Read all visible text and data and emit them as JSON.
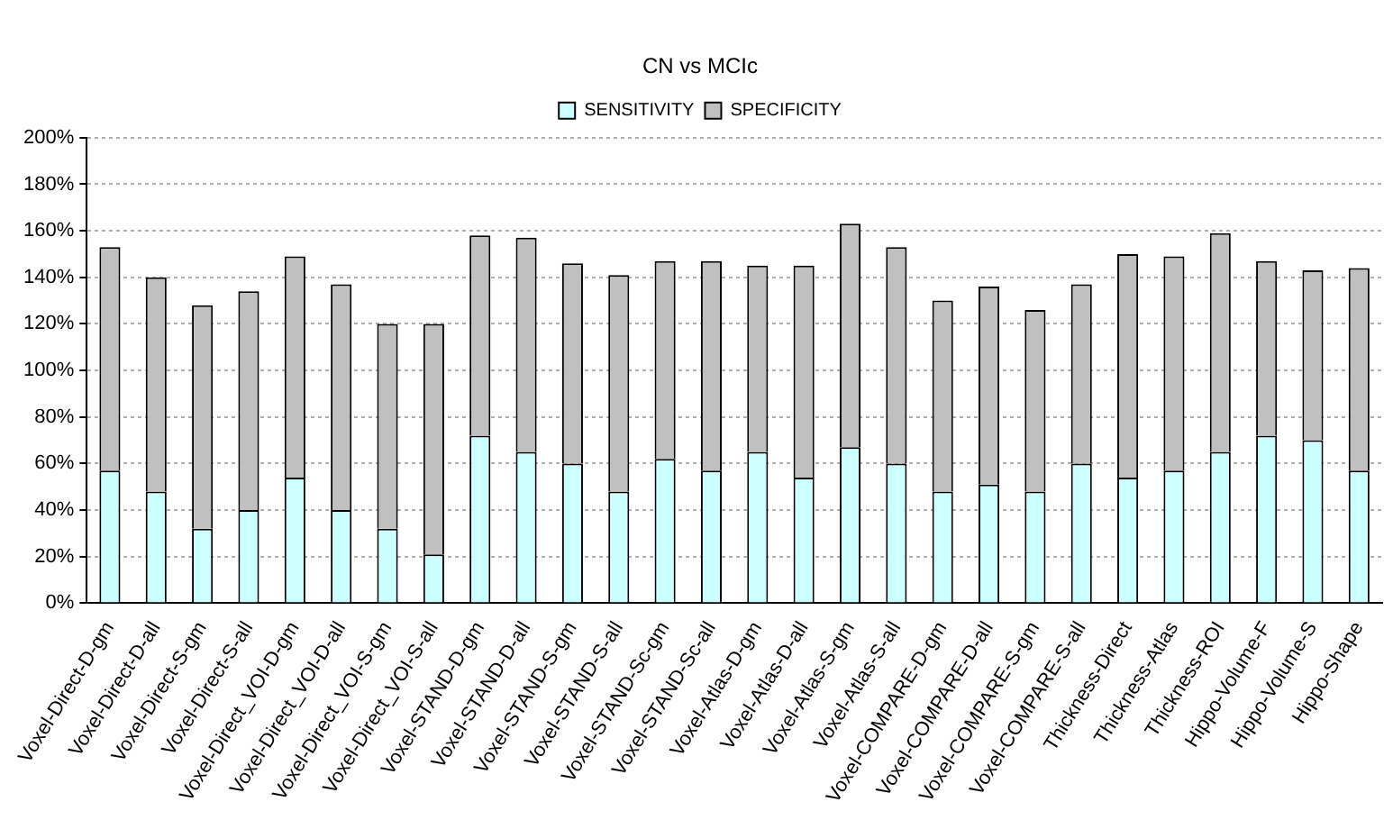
{
  "chart_data": {
    "type": "bar",
    "title": "CN vs MCIc",
    "stacked": true,
    "categories": [
      "Voxel-Direct-D-gm",
      "Voxel-Direct-D-all",
      "Voxel-Direct-S-gm",
      "Voxel-Direct-S-all",
      "Voxel-Direct_VOI-D-gm",
      "Voxel-Direct_VOI-D-all",
      "Voxel-Direct_VOI-S-gm",
      "Voxel-Direct_VOI-S-all",
      "Voxel-STAND-D-gm",
      "Voxel-STAND-D-all",
      "Voxel-STAND-S-gm",
      "Voxel-STAND-S-all",
      "Voxel-STAND-Sc-gm",
      "Voxel-STAND-Sc-all",
      "Voxel-Atlas-D-gm",
      "Voxel-Atlas-D-all",
      "Voxel-Atlas-S-gm",
      "Voxel-Atlas-S-all",
      "Voxel-COMPARE-D-gm",
      "Voxel-COMPARE-D-all",
      "Voxel-COMPARE-S-gm",
      "Voxel-COMPARE-S-all",
      "Thickness-Direct",
      "Thickness-Atlas",
      "Thickness-ROI",
      "Hippo-Volume-F",
      "Hippo-Volume-S",
      "Hippo-Shape"
    ],
    "series": [
      {
        "name": "SENSITIVITY",
        "color": "#ccffff",
        "values": [
          57,
          48,
          32,
          40,
          54,
          40,
          32,
          21,
          72,
          65,
          60,
          48,
          62,
          57,
          65,
          54,
          67,
          60,
          48,
          51,
          48,
          60,
          54,
          57,
          65,
          72,
          70,
          57
        ]
      },
      {
        "name": "SPECIFICITY",
        "color": "#c0c0c0",
        "values": [
          96,
          92,
          96,
          94,
          95,
          97,
          88,
          99,
          86,
          92,
          86,
          93,
          85,
          90,
          80,
          91,
          96,
          93,
          82,
          85,
          78,
          77,
          96,
          92,
          94,
          75,
          73,
          87
        ]
      }
    ],
    "ylim": [
      0,
      200
    ],
    "yticks": [
      {
        "value": 0,
        "label": "0%"
      },
      {
        "value": 20,
        "label": "20%"
      },
      {
        "value": 40,
        "label": "40%"
      },
      {
        "value": 60,
        "label": "60%"
      },
      {
        "value": 80,
        "label": "80%"
      },
      {
        "value": 100,
        "label": "100%"
      },
      {
        "value": 120,
        "label": "120%"
      },
      {
        "value": 140,
        "label": "140%"
      },
      {
        "value": 160,
        "label": "160%"
      },
      {
        "value": 180,
        "label": "180%"
      },
      {
        "value": 200,
        "label": "200%"
      }
    ],
    "grid": "y",
    "legend": "top"
  }
}
